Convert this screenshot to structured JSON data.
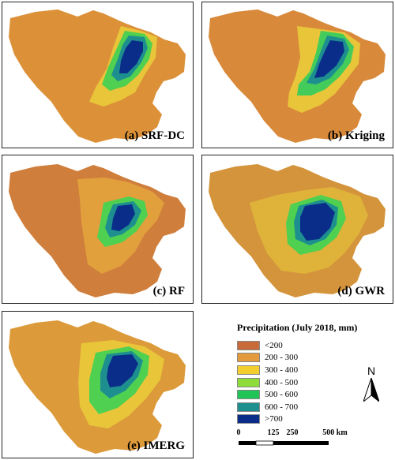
{
  "panels": [
    {
      "id": "a",
      "label": "(a) SRF-DC"
    },
    {
      "id": "b",
      "label": "(b) Kriging"
    },
    {
      "id": "c",
      "label": "(c) RF"
    },
    {
      "id": "d",
      "label": "(d) GWR"
    },
    {
      "id": "e",
      "label": "(e) IMERG"
    }
  ],
  "legend": {
    "title": "Precipitation (July 2018, mm)",
    "items": [
      {
        "label": "<200",
        "color": "#c96a3a"
      },
      {
        "label": "200 - 300",
        "color": "#e39a3c"
      },
      {
        "label": "300 - 400",
        "color": "#f2cf2e"
      },
      {
        "label": "400 - 500",
        "color": "#8ddc3a"
      },
      {
        "label": "500 - 600",
        "color": "#21c456"
      },
      {
        "label": "600 - 700",
        "color": "#1d8f8f"
      },
      {
        "label": ">700",
        "color": "#0b2d8a"
      }
    ]
  },
  "north_arrow": {
    "label": "N",
    "icon": "north-arrow-icon"
  },
  "scale_bar": {
    "ticks": [
      "0",
      "125",
      "250",
      "500 km"
    ]
  }
}
